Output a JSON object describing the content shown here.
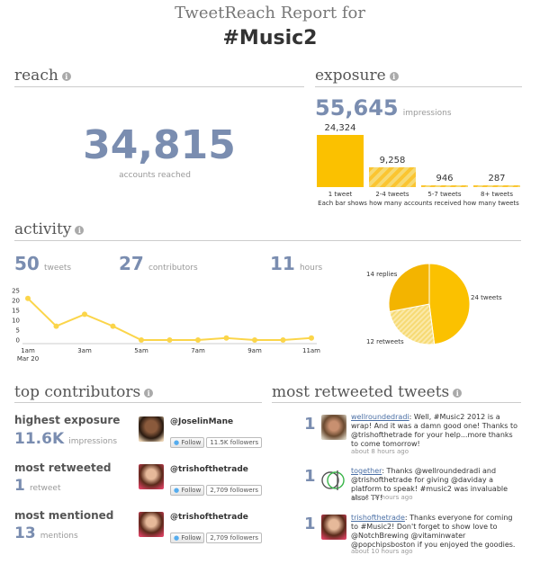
{
  "header": {
    "title_line1": "TweetReach Report for",
    "title_line2": "#Music2"
  },
  "reach": {
    "heading": "reach",
    "value": "34,815",
    "label": "accounts reached"
  },
  "exposure": {
    "heading": "exposure",
    "value": "55,645",
    "unit": "impressions",
    "caption": "Each bar shows how many accounts received how many tweets",
    "bars": [
      {
        "value": "24,324",
        "label": "1 tweet",
        "amount": 24324
      },
      {
        "value": "9,258",
        "label": "2-4 tweets",
        "amount": 9258
      },
      {
        "value": "946",
        "label": "5-7 tweets",
        "amount": 946
      },
      {
        "value": "287",
        "label": "8+ tweets",
        "amount": 287
      }
    ]
  },
  "activity": {
    "heading": "activity",
    "tweets_value": "50",
    "tweets_label": "tweets",
    "contributors_value": "27",
    "contributors_label": "contributors",
    "hours_value": "11",
    "hours_label": "hours"
  },
  "chart_data": [
    {
      "type": "line",
      "x": [
        "1am",
        "2am",
        "3am",
        "4am",
        "5am",
        "6am",
        "7am",
        "8am",
        "9am",
        "10am",
        "11am"
      ],
      "x_tick_labels": [
        "1am",
        "3am",
        "5am",
        "7am",
        "9am",
        "11am"
      ],
      "x_sublabel": "Mar 20",
      "series": [
        {
          "values": [
            21,
            7,
            13,
            7,
            0,
            0,
            0,
            1,
            0,
            0,
            1
          ]
        }
      ],
      "ylim": [
        0,
        25
      ],
      "y_ticks": [
        "25",
        "20",
        "15",
        "10",
        "5",
        "0"
      ],
      "color": "#fbd54a"
    },
    {
      "type": "pie",
      "slices": [
        {
          "label": "24 tweets",
          "value": 24,
          "color": "#fbc100"
        },
        {
          "label": "12 retweets",
          "value": 12,
          "color": "#f6da74"
        },
        {
          "label": "14 replies",
          "value": 14,
          "color": "#f3b400"
        }
      ]
    }
  ],
  "top_contributors": {
    "heading": "top contributors",
    "rows": [
      {
        "label": "highest exposure",
        "value": "11.6K",
        "unit": "impressions",
        "handle": "@JoselinMane",
        "follow": "Follow",
        "followers": "11.5K followers"
      },
      {
        "label": "most retweeted",
        "value": "1",
        "unit": "retweet",
        "handle": "@trishofthetrade",
        "follow": "Follow",
        "followers": "2,709 followers"
      },
      {
        "label": "most mentioned",
        "value": "13",
        "unit": "mentions",
        "handle": "@trishofthetrade",
        "follow": "Follow",
        "followers": "2,709 followers"
      }
    ]
  },
  "most_retweeted": {
    "heading": "most retweeted tweets",
    "tweets": [
      {
        "count": "1",
        "user": "wellroundedradi",
        "text": ": Well, #Music2 2012 is a wrap! And it was a damn good one! Thanks to @trishofthetrade for your help...more thanks to come tomorrow!",
        "time": "about 8 hours ago"
      },
      {
        "count": "1",
        "user": "together",
        "text": ": Thanks @wellroundedradi and @trishofthetrade for giving @daviday a platform to speak! #music2 was invaluable also! TY!",
        "time": "about 10 hours ago"
      },
      {
        "count": "1",
        "user": "trishofthetrade",
        "text": ": Thanks everyone for coming to #Music2! Don't forget to show love to @NotchBrewing @vitaminwater @popchipsboston if you enjoyed the goodies.",
        "time": "about 10 hours ago"
      }
    ]
  }
}
